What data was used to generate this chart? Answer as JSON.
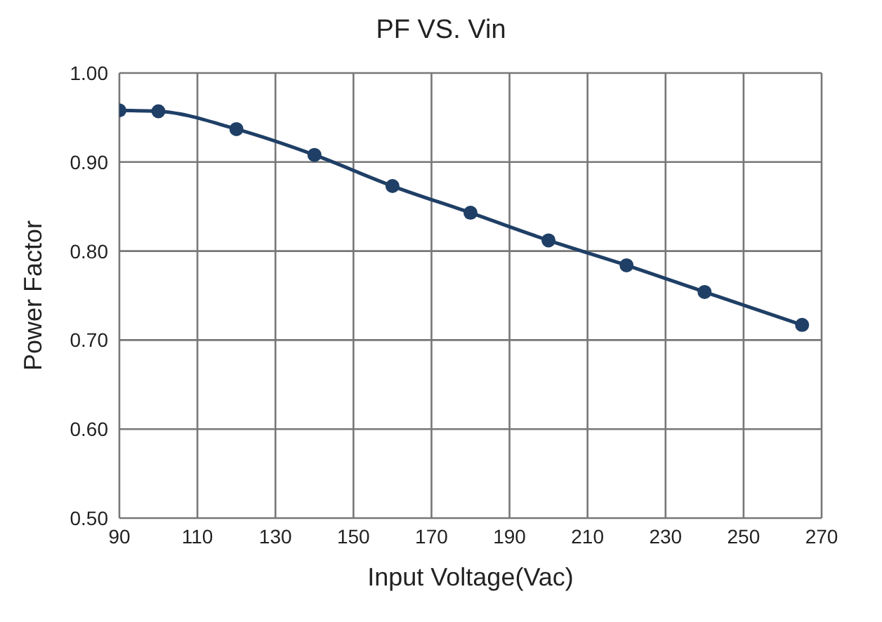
{
  "chart_data": {
    "type": "line",
    "title": "PF VS. Vin",
    "xlabel": "Input Voltage(Vac)",
    "ylabel": "Power Factor",
    "x": [
      90,
      100,
      120,
      140,
      160,
      180,
      200,
      220,
      240,
      265
    ],
    "series": [
      {
        "color": "#1f3f66",
        "values": [
          0.958,
          0.957,
          0.937,
          0.908,
          0.873,
          0.843,
          0.812,
          0.784,
          0.754,
          0.717
        ]
      }
    ],
    "xlim": [
      90,
      270
    ],
    "xticks": [
      90,
      110,
      130,
      150,
      170,
      190,
      210,
      230,
      250,
      270
    ],
    "ylim": [
      0.5,
      1.0
    ],
    "yticks": [
      {
        "value": 0.5,
        "label": "0.50"
      },
      {
        "value": 0.6,
        "label": "0.60"
      },
      {
        "value": 0.7,
        "label": "0.70"
      },
      {
        "value": 0.8,
        "label": "0.80"
      },
      {
        "value": 0.9,
        "label": "0.90"
      },
      {
        "value": 1.0,
        "label": "1.00"
      }
    ],
    "grid": true,
    "marker": "circle",
    "line_style": "solid",
    "legend": false
  }
}
